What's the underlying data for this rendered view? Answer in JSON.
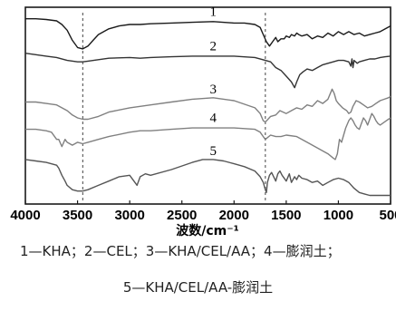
{
  "chart_data": {
    "type": "line",
    "title": "",
    "xlabel": "波数/cm⁻¹",
    "ylabel": "",
    "xlim": [
      4000,
      500
    ],
    "x_reversed": true,
    "x_ticks": [
      "4000",
      "3500",
      "3000",
      "2500",
      "2000",
      "1500",
      "1000",
      "500"
    ],
    "y_ticks_shown": false,
    "grid": false,
    "reference_lines_x": [
      3450,
      1700
    ],
    "series": [
      {
        "name": "1",
        "color": "#1a1a1a",
        "x": [
          4000,
          3900,
          3800,
          3700,
          3650,
          3600,
          3550,
          3500,
          3450,
          3400,
          3350,
          3300,
          3200,
          3100,
          3000,
          2900,
          2800,
          2600,
          2400,
          2200,
          2000,
          1900,
          1800,
          1750,
          1720,
          1690,
          1660,
          1620,
          1600,
          1580,
          1550,
          1520,
          1500,
          1470,
          1450,
          1420,
          1400,
          1380,
          1350,
          1300,
          1250,
          1200,
          1150,
          1100,
          1050,
          1000,
          950,
          900,
          850,
          800,
          750,
          700,
          650,
          600,
          550,
          500
        ],
        "y": [
          0.24,
          0.24,
          0.235,
          0.225,
          0.2,
          0.16,
          0.09,
          0.04,
          0.03,
          0.05,
          0.09,
          0.13,
          0.17,
          0.19,
          0.2,
          0.2,
          0.205,
          0.21,
          0.215,
          0.22,
          0.21,
          0.21,
          0.2,
          0.18,
          0.13,
          0.08,
          0.05,
          0.09,
          0.11,
          0.08,
          0.1,
          0.1,
          0.12,
          0.11,
          0.13,
          0.12,
          0.14,
          0.13,
          0.12,
          0.13,
          0.1,
          0.12,
          0.11,
          0.14,
          0.12,
          0.15,
          0.13,
          0.15,
          0.13,
          0.14,
          0.12,
          0.13,
          0.14,
          0.15,
          0.17,
          0.19
        ]
      },
      {
        "name": "2",
        "color": "#333333",
        "x": [
          4000,
          3900,
          3800,
          3700,
          3600,
          3500,
          3450,
          3400,
          3300,
          3200,
          3000,
          2900,
          2800,
          2600,
          2400,
          2200,
          2000,
          1800,
          1700,
          1650,
          1600,
          1550,
          1500,
          1450,
          1420,
          1400,
          1370,
          1340,
          1300,
          1250,
          1200,
          1150,
          1100,
          1050,
          1000,
          950,
          900,
          880,
          870,
          860,
          850,
          820,
          800,
          750,
          700,
          650,
          600,
          550,
          500
        ],
        "y": [
          0.0,
          -0.01,
          -0.02,
          -0.03,
          -0.05,
          -0.06,
          -0.06,
          -0.055,
          -0.045,
          -0.035,
          -0.03,
          -0.035,
          -0.03,
          -0.025,
          -0.02,
          -0.02,
          -0.02,
          -0.03,
          -0.05,
          -0.06,
          -0.1,
          -0.12,
          -0.16,
          -0.2,
          -0.24,
          -0.2,
          -0.15,
          -0.13,
          -0.11,
          -0.12,
          -0.1,
          -0.08,
          -0.07,
          -0.06,
          -0.05,
          -0.05,
          -0.06,
          -0.09,
          -0.04,
          -0.1,
          -0.05,
          -0.07,
          -0.06,
          -0.05,
          -0.04,
          -0.04,
          -0.03,
          -0.025,
          -0.02
        ]
      },
      {
        "name": "3",
        "color": "#808080",
        "x": [
          4000,
          3900,
          3800,
          3700,
          3650,
          3600,
          3550,
          3500,
          3450,
          3400,
          3300,
          3200,
          3000,
          2900,
          2800,
          2600,
          2400,
          2200,
          2000,
          1800,
          1750,
          1720,
          1700,
          1650,
          1600,
          1560,
          1500,
          1450,
          1400,
          1350,
          1300,
          1250,
          1200,
          1150,
          1100,
          1060,
          1040,
          1020,
          1000,
          960,
          920,
          900,
          880,
          860,
          830,
          800,
          760,
          720,
          680,
          640,
          600,
          560,
          520,
          500
        ],
        "y": [
          -0.34,
          -0.34,
          -0.35,
          -0.36,
          -0.38,
          -0.4,
          -0.43,
          -0.45,
          -0.46,
          -0.46,
          -0.44,
          -0.41,
          -0.38,
          -0.37,
          -0.36,
          -0.34,
          -0.32,
          -0.31,
          -0.33,
          -0.38,
          -0.42,
          -0.47,
          -0.48,
          -0.44,
          -0.43,
          -0.4,
          -0.42,
          -0.4,
          -0.38,
          -0.39,
          -0.36,
          -0.37,
          -0.33,
          -0.35,
          -0.32,
          -0.25,
          -0.28,
          -0.33,
          -0.35,
          -0.38,
          -0.4,
          -0.42,
          -0.41,
          -0.37,
          -0.33,
          -0.34,
          -0.36,
          -0.38,
          -0.37,
          -0.35,
          -0.33,
          -0.32,
          -0.31,
          -0.3
        ]
      },
      {
        "name": "4",
        "color": "#808080",
        "x": [
          4000,
          3900,
          3800,
          3750,
          3700,
          3680,
          3650,
          3620,
          3600,
          3550,
          3500,
          3450,
          3400,
          3300,
          3200,
          3000,
          2900,
          2800,
          2600,
          2400,
          2200,
          2000,
          1800,
          1750,
          1720,
          1700,
          1650,
          1600,
          1550,
          1500,
          1400,
          1300,
          1200,
          1100,
          1050,
          1030,
          1010,
          990,
          970,
          950,
          930,
          900,
          880,
          860,
          840,
          820,
          800,
          780,
          760,
          740,
          720,
          700,
          680,
          660,
          640,
          620,
          600,
          580,
          560,
          540,
          520,
          500
        ],
        "y": [
          -0.53,
          -0.53,
          -0.54,
          -0.55,
          -0.6,
          -0.6,
          -0.65,
          -0.6,
          -0.62,
          -0.64,
          -0.62,
          -0.63,
          -0.62,
          -0.6,
          -0.58,
          -0.55,
          -0.54,
          -0.54,
          -0.53,
          -0.52,
          -0.52,
          -0.52,
          -0.53,
          -0.55,
          -0.58,
          -0.6,
          -0.57,
          -0.58,
          -0.58,
          -0.57,
          -0.58,
          -0.62,
          -0.66,
          -0.7,
          -0.73,
          -0.74,
          -0.7,
          -0.6,
          -0.62,
          -0.57,
          -0.52,
          -0.47,
          -0.45,
          -0.47,
          -0.5,
          -0.52,
          -0.53,
          -0.49,
          -0.45,
          -0.47,
          -0.5,
          -0.46,
          -0.42,
          -0.44,
          -0.47,
          -0.49,
          -0.5,
          -0.49,
          -0.48,
          -0.47,
          -0.46,
          -0.45
        ]
      },
      {
        "name": "5",
        "color": "#555555",
        "x": [
          4000,
          3900,
          3800,
          3700,
          3680,
          3650,
          3620,
          3600,
          3550,
          3500,
          3450,
          3400,
          3300,
          3200,
          3100,
          3000,
          2950,
          2930,
          2900,
          2850,
          2800,
          2600,
          2400,
          2300,
          2200,
          2100,
          2000,
          1900,
          1800,
          1750,
          1720,
          1700,
          1690,
          1680,
          1660,
          1640,
          1620,
          1600,
          1580,
          1560,
          1540,
          1500,
          1470,
          1450,
          1420,
          1400,
          1380,
          1350,
          1300,
          1250,
          1200,
          1150,
          1100,
          1050,
          1000,
          950,
          900,
          850,
          800,
          750,
          700,
          650,
          600,
          550,
          500
        ],
        "y": [
          -0.74,
          -0.75,
          -0.76,
          -0.78,
          -0.8,
          -0.85,
          -0.89,
          -0.92,
          -0.95,
          -0.96,
          -0.96,
          -0.95,
          -0.92,
          -0.89,
          -0.86,
          -0.85,
          -0.9,
          -0.92,
          -0.86,
          -0.84,
          -0.85,
          -0.81,
          -0.76,
          -0.74,
          -0.74,
          -0.75,
          -0.77,
          -0.79,
          -0.82,
          -0.86,
          -0.9,
          -0.95,
          -0.97,
          -0.9,
          -0.85,
          -0.83,
          -0.86,
          -0.89,
          -0.84,
          -0.82,
          -0.85,
          -0.89,
          -0.84,
          -0.9,
          -0.86,
          -0.88,
          -0.85,
          -0.87,
          -0.88,
          -0.9,
          -0.89,
          -0.92,
          -0.9,
          -0.88,
          -0.87,
          -0.88,
          -0.9,
          -0.94,
          -0.97,
          -0.98,
          -0.99,
          -0.99,
          -0.99,
          -0.99,
          -0.99
        ]
      }
    ],
    "curve_labels": [
      {
        "text": "1",
        "x": 2200,
        "y": 0.26
      },
      {
        "text": "2",
        "x": 2200,
        "y": 0.02
      },
      {
        "text": "3",
        "x": 2200,
        "y": -0.28
      },
      {
        "text": "4",
        "x": 2200,
        "y": -0.48
      },
      {
        "text": "5",
        "x": 2200,
        "y": -0.71
      }
    ],
    "ylim": [
      -1.05,
      0.32
    ],
    "caption_lines": [
      "1—KHA；2—CEL；3—KHA/CEL/AA；4—膨润土；",
      "5—KHA/CEL/AA-膨润土"
    ]
  }
}
